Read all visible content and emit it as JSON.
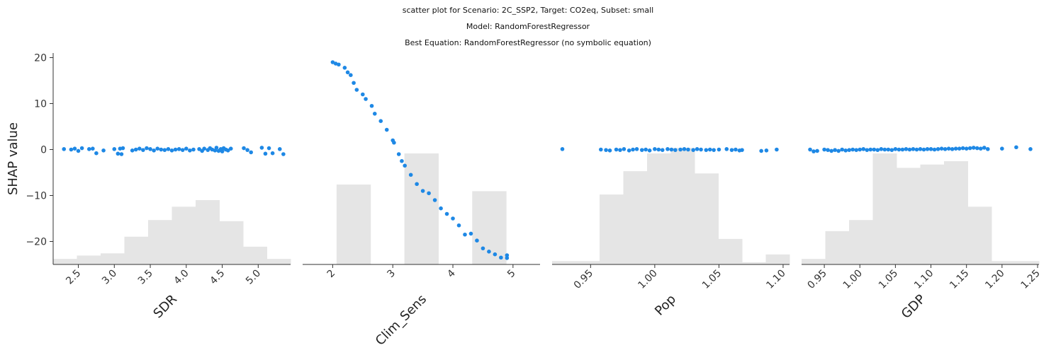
{
  "titles": {
    "line1": "scatter plot for Scenario: 2C_SSP2, Target: CO2eq, Subset: small",
    "line2": "Model: RandomForestRegressor",
    "line3": "Best Equation: RandomForestRegressor (no symbolic equation)"
  },
  "colors": {
    "points": "#1e88e5",
    "hist": "#e5e5e5",
    "axis": "#333333"
  },
  "chart_data": [
    {
      "type": "scatter",
      "xlabel": "SDR",
      "ylabel": "SHAP value",
      "xlim": [
        2.15,
        5.45
      ],
      "ylim": [
        -25,
        21
      ],
      "xticks": [
        "2.5",
        "3.0",
        "3.5",
        "4.0",
        "4.5",
        "5.0"
      ],
      "yticks": [
        "20",
        "10",
        "0",
        "−10",
        "−20"
      ],
      "points": [
        [
          2.3,
          0.1
        ],
        [
          2.4,
          0.0
        ],
        [
          2.45,
          0.2
        ],
        [
          2.5,
          -0.3
        ],
        [
          2.55,
          0.3
        ],
        [
          2.65,
          0.1
        ],
        [
          2.7,
          0.2
        ],
        [
          2.75,
          -0.8
        ],
        [
          2.85,
          -0.2
        ],
        [
          3.0,
          0.1
        ],
        [
          3.05,
          -0.9
        ],
        [
          3.1,
          -1.0
        ],
        [
          3.08,
          0.2
        ],
        [
          3.12,
          0.3
        ],
        [
          3.25,
          -0.2
        ],
        [
          3.3,
          0.0
        ],
        [
          3.35,
          0.2
        ],
        [
          3.4,
          -0.1
        ],
        [
          3.45,
          0.3
        ],
        [
          3.5,
          0.1
        ],
        [
          3.55,
          -0.2
        ],
        [
          3.6,
          0.2
        ],
        [
          3.65,
          0.0
        ],
        [
          3.7,
          -0.1
        ],
        [
          3.75,
          0.1
        ],
        [
          3.8,
          -0.2
        ],
        [
          3.85,
          0.0
        ],
        [
          3.9,
          0.1
        ],
        [
          3.95,
          -0.1
        ],
        [
          4.0,
          0.2
        ],
        [
          4.05,
          -0.2
        ],
        [
          4.1,
          0.0
        ],
        [
          4.18,
          0.1
        ],
        [
          4.22,
          -0.3
        ],
        [
          4.25,
          0.2
        ],
        [
          4.3,
          -0.1
        ],
        [
          4.33,
          0.3
        ],
        [
          4.36,
          0.0
        ],
        [
          4.4,
          -0.2
        ],
        [
          4.42,
          0.4
        ],
        [
          4.45,
          -0.3
        ],
        [
          4.48,
          0.1
        ],
        [
          4.5,
          -0.4
        ],
        [
          4.52,
          0.3
        ],
        [
          4.55,
          0.0
        ],
        [
          4.58,
          -0.2
        ],
        [
          4.62,
          0.2
        ],
        [
          4.8,
          0.3
        ],
        [
          4.85,
          -0.1
        ],
        [
          4.9,
          -0.6
        ],
        [
          5.05,
          0.4
        ],
        [
          5.1,
          -0.9
        ],
        [
          5.15,
          0.3
        ],
        [
          5.2,
          -0.8
        ],
        [
          5.3,
          0.1
        ],
        [
          5.35,
          -1.0
        ]
      ],
      "hist": [
        0.05,
        0.08,
        0.1,
        0.25,
        0.4,
        0.52,
        0.58,
        0.39,
        0.16,
        0.05
      ]
    },
    {
      "type": "scatter",
      "xlabel": "Clim_Sens",
      "xlim": [
        1.5,
        5.45
      ],
      "ylim": [
        -25,
        21
      ],
      "xticks": [
        "2",
        "3",
        "4",
        "5"
      ],
      "points": [
        [
          2.0,
          19.0
        ],
        [
          2.05,
          18.7
        ],
        [
          2.1,
          18.5
        ],
        [
          2.2,
          17.8
        ],
        [
          2.25,
          16.8
        ],
        [
          2.3,
          16.2
        ],
        [
          2.35,
          14.5
        ],
        [
          2.4,
          13.0
        ],
        [
          2.5,
          12.0
        ],
        [
          2.55,
          11.0
        ],
        [
          2.65,
          9.5
        ],
        [
          2.7,
          7.8
        ],
        [
          2.8,
          6.2
        ],
        [
          2.9,
          4.3
        ],
        [
          3.0,
          2.0
        ],
        [
          3.02,
          1.5
        ],
        [
          3.1,
          -1.0
        ],
        [
          3.15,
          -2.5
        ],
        [
          3.2,
          -3.5
        ],
        [
          3.3,
          -5.5
        ],
        [
          3.4,
          -7.5
        ],
        [
          3.5,
          -9.0
        ],
        [
          3.6,
          -9.5
        ],
        [
          3.7,
          -11.0
        ],
        [
          3.8,
          -12.8
        ],
        [
          3.9,
          -14.0
        ],
        [
          4.0,
          -15.0
        ],
        [
          4.1,
          -16.5
        ],
        [
          4.2,
          -18.5
        ],
        [
          4.3,
          -18.3
        ],
        [
          4.4,
          -19.8
        ],
        [
          4.5,
          -21.5
        ],
        [
          4.6,
          -22.2
        ],
        [
          4.7,
          -22.8
        ],
        [
          4.8,
          -23.5
        ],
        [
          4.9,
          -23.0
        ],
        [
          4.9,
          -23.6
        ]
      ],
      "hist": [
        0.0,
        0.72,
        0.0,
        1.0,
        0.0,
        0.66,
        0.0
      ]
    },
    {
      "type": "scatter",
      "xlabel": "Pop",
      "xlim": [
        0.92,
        1.105
      ],
      "ylim": [
        -25,
        21
      ],
      "xticks": [
        "0.95",
        "1.00",
        "1.05",
        "1.10"
      ],
      "points": [
        [
          0.928,
          0.1
        ],
        [
          0.958,
          0.0
        ],
        [
          0.962,
          -0.1
        ],
        [
          0.965,
          -0.2
        ],
        [
          0.97,
          0.0
        ],
        [
          0.973,
          -0.1
        ],
        [
          0.976,
          0.1
        ],
        [
          0.98,
          -0.2
        ],
        [
          0.983,
          0.0
        ],
        [
          0.986,
          0.1
        ],
        [
          0.99,
          -0.1
        ],
        [
          0.993,
          0.0
        ],
        [
          0.996,
          -0.2
        ],
        [
          1.0,
          0.1
        ],
        [
          1.003,
          0.0
        ],
        [
          1.006,
          -0.1
        ],
        [
          1.01,
          0.1
        ],
        [
          1.013,
          0.0
        ],
        [
          1.016,
          -0.1
        ],
        [
          1.02,
          0.0
        ],
        [
          1.023,
          0.1
        ],
        [
          1.026,
          0.0
        ],
        [
          1.03,
          -0.1
        ],
        [
          1.033,
          0.1
        ],
        [
          1.036,
          0.0
        ],
        [
          1.04,
          -0.1
        ],
        [
          1.043,
          0.0
        ],
        [
          1.046,
          -0.1
        ],
        [
          1.05,
          0.0
        ],
        [
          1.056,
          0.1
        ],
        [
          1.06,
          -0.1
        ],
        [
          1.063,
          0.0
        ],
        [
          1.066,
          -0.2
        ],
        [
          1.068,
          -0.1
        ],
        [
          1.083,
          -0.3
        ],
        [
          1.087,
          -0.2
        ],
        [
          1.095,
          0.0
        ]
      ],
      "hist": [
        0.03,
        0.03,
        0.63,
        0.84,
        1.0,
        1.05,
        0.82,
        0.23,
        0.02,
        0.09
      ]
    },
    {
      "type": "scatter",
      "xlabel": "GDP",
      "xlim": [
        0.918,
        1.252
      ],
      "ylim": [
        -25,
        21
      ],
      "xticks": [
        "0.95",
        "1.00",
        "1.05",
        "1.10",
        "1.15",
        "1.20",
        "1.25"
      ],
      "points": [
        [
          0.93,
          0.0
        ],
        [
          0.935,
          -0.4
        ],
        [
          0.94,
          -0.3
        ],
        [
          0.95,
          0.0
        ],
        [
          0.955,
          -0.1
        ],
        [
          0.96,
          -0.3
        ],
        [
          0.965,
          -0.1
        ],
        [
          0.97,
          -0.3
        ],
        [
          0.975,
          0.0
        ],
        [
          0.98,
          -0.2
        ],
        [
          0.985,
          -0.1
        ],
        [
          0.99,
          0.0
        ],
        [
          0.995,
          -0.1
        ],
        [
          1.0,
          0.0
        ],
        [
          1.005,
          0.1
        ],
        [
          1.01,
          -0.1
        ],
        [
          1.015,
          0.0
        ],
        [
          1.02,
          0.0
        ],
        [
          1.025,
          -0.1
        ],
        [
          1.03,
          0.1
        ],
        [
          1.035,
          0.0
        ],
        [
          1.04,
          0.0
        ],
        [
          1.045,
          -0.1
        ],
        [
          1.05,
          0.1
        ],
        [
          1.055,
          0.0
        ],
        [
          1.06,
          0.0
        ],
        [
          1.065,
          0.1
        ],
        [
          1.07,
          0.0
        ],
        [
          1.075,
          0.1
        ],
        [
          1.08,
          0.0
        ],
        [
          1.085,
          0.1
        ],
        [
          1.09,
          0.0
        ],
        [
          1.095,
          0.1
        ],
        [
          1.1,
          0.1
        ],
        [
          1.105,
          0.0
        ],
        [
          1.11,
          0.1
        ],
        [
          1.115,
          0.2
        ],
        [
          1.12,
          0.1
        ],
        [
          1.125,
          0.2
        ],
        [
          1.13,
          0.1
        ],
        [
          1.135,
          0.2
        ],
        [
          1.14,
          0.2
        ],
        [
          1.145,
          0.3
        ],
        [
          1.15,
          0.2
        ],
        [
          1.155,
          0.3
        ],
        [
          1.16,
          0.4
        ],
        [
          1.165,
          0.3
        ],
        [
          1.17,
          0.2
        ],
        [
          1.175,
          0.4
        ],
        [
          1.18,
          0.1
        ],
        [
          1.2,
          0.2
        ],
        [
          1.22,
          0.5
        ],
        [
          1.24,
          0.1
        ]
      ],
      "hist": [
        0.05,
        0.3,
        0.4,
        1.0,
        0.87,
        0.9,
        0.93,
        0.52,
        0.03,
        0.03
      ]
    }
  ]
}
